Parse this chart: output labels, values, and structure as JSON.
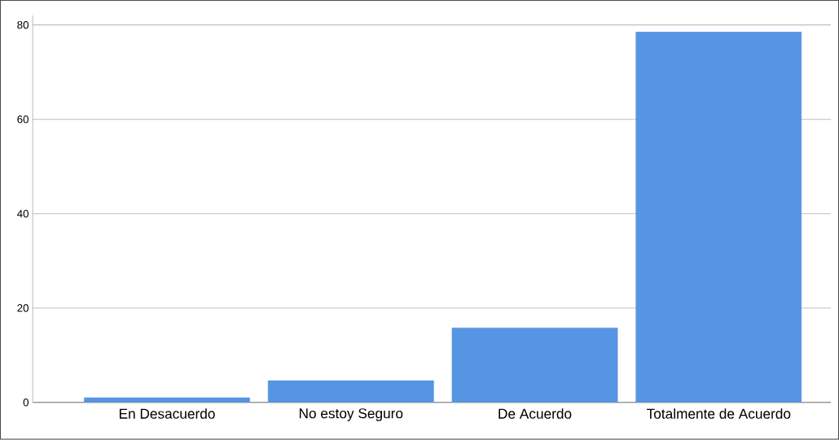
{
  "chart_data": {
    "type": "bar",
    "categories": [
      "En Desacuerdo",
      "No estoy Seguro",
      "De Acuerdo",
      "Totalmente de Acuerdo"
    ],
    "values": [
      1.0,
      4.6,
      15.8,
      78.5
    ],
    "color": "#5595e3",
    "ylim": [
      0,
      82
    ],
    "yticks": [
      0,
      20,
      40,
      60,
      80
    ],
    "grid": "y"
  }
}
